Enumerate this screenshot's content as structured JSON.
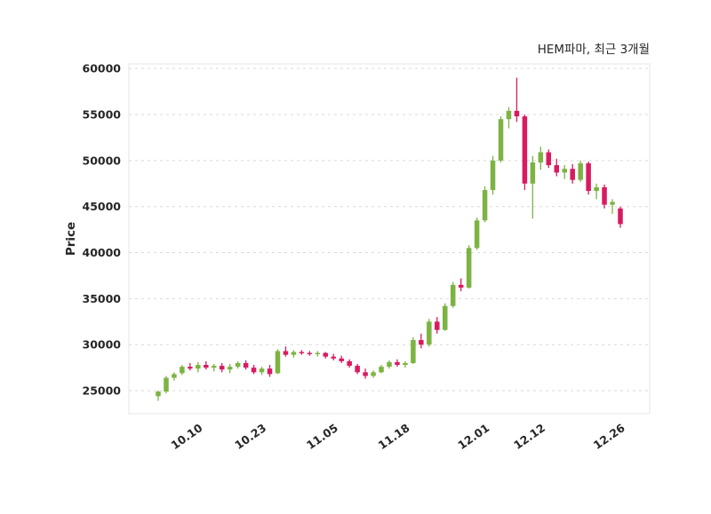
{
  "title": "HEM파마, 최근 3개월",
  "chart_data": {
    "type": "candlestick",
    "title": "HEM파마, 최근 3개월",
    "xlabel": "",
    "ylabel": "Price",
    "ylim": [
      22500,
      60500
    ],
    "yticks": [
      25000,
      30000,
      35000,
      40000,
      45000,
      50000,
      55000,
      60000
    ],
    "xticks": [
      {
        "label": "10.10",
        "index": 5
      },
      {
        "label": "10.23",
        "index": 13
      },
      {
        "label": "11.05",
        "index": 22
      },
      {
        "label": "11.18",
        "index": 31
      },
      {
        "label": "12.01",
        "index": 41
      },
      {
        "label": "12.12",
        "index": 48
      },
      {
        "label": "12.26",
        "index": 58
      }
    ],
    "grid": "horizontal-dashed",
    "legend": "none",
    "colors": {
      "up": "#7CB342",
      "down": "#D81B60",
      "grid": "#d9d9d9",
      "border": "#e6e6e6",
      "text": "#262626",
      "background": "#ffffff"
    },
    "candles_format": [
      "open",
      "high",
      "low",
      "close"
    ],
    "candles": [
      [
        24400,
        25000,
        23900,
        24900
      ],
      [
        24900,
        26600,
        24700,
        26400
      ],
      [
        26400,
        27000,
        26100,
        26800
      ],
      [
        26900,
        27800,
        26700,
        27600
      ],
      [
        27600,
        28000,
        27200,
        27400
      ],
      [
        27400,
        28100,
        27000,
        27800
      ],
      [
        27800,
        28200,
        27300,
        27500
      ],
      [
        27500,
        27900,
        27100,
        27700
      ],
      [
        27700,
        28000,
        27000,
        27300
      ],
      [
        27300,
        27900,
        26900,
        27600
      ],
      [
        27600,
        28200,
        27400,
        28000
      ],
      [
        28000,
        28300,
        27300,
        27500
      ],
      [
        27500,
        27800,
        26800,
        27000
      ],
      [
        27000,
        27600,
        26700,
        27400
      ],
      [
        27400,
        27800,
        26500,
        26800
      ],
      [
        26900,
        29500,
        26800,
        29300
      ],
      [
        29300,
        29800,
        28700,
        28900
      ],
      [
        28900,
        29400,
        28600,
        29200
      ],
      [
        29200,
        29400,
        28900,
        29100
      ],
      [
        29100,
        29300,
        28800,
        29000
      ],
      [
        29000,
        29300,
        28700,
        29100
      ],
      [
        29100,
        29200,
        28500,
        28700
      ],
      [
        28700,
        29000,
        28300,
        28500
      ],
      [
        28500,
        28800,
        28000,
        28200
      ],
      [
        28200,
        28400,
        27500,
        27700
      ],
      [
        27700,
        27900,
        26800,
        27000
      ],
      [
        27000,
        27400,
        26300,
        26600
      ],
      [
        26600,
        27200,
        26400,
        27000
      ],
      [
        27000,
        27800,
        26900,
        27600
      ],
      [
        27600,
        28300,
        27400,
        28100
      ],
      [
        28100,
        28400,
        27600,
        27800
      ],
      [
        27800,
        28200,
        27500,
        28000
      ],
      [
        28000,
        30800,
        27900,
        30500
      ],
      [
        30500,
        31200,
        29600,
        30000
      ],
      [
        30000,
        32800,
        29800,
        32500
      ],
      [
        32500,
        33000,
        31200,
        31600
      ],
      [
        31600,
        34500,
        31500,
        34200
      ],
      [
        34200,
        36800,
        34000,
        36500
      ],
      [
        36500,
        37200,
        35800,
        36200
      ],
      [
        36200,
        40800,
        36100,
        40500
      ],
      [
        40500,
        43800,
        40300,
        43500
      ],
      [
        43500,
        47200,
        43300,
        46800
      ],
      [
        46800,
        50500,
        46300,
        50000
      ],
      [
        50000,
        54800,
        49800,
        54500
      ],
      [
        54500,
        55800,
        53500,
        55400
      ],
      [
        55400,
        59000,
        54200,
        54800
      ],
      [
        54800,
        55000,
        46800,
        47500
      ],
      [
        47500,
        50500,
        43700,
        49800
      ],
      [
        49800,
        51500,
        49000,
        50900
      ],
      [
        50900,
        51200,
        49200,
        49500
      ],
      [
        49500,
        50200,
        48300,
        48700
      ],
      [
        48700,
        49500,
        48000,
        49100
      ],
      [
        49100,
        49600,
        47500,
        47900
      ],
      [
        47900,
        50000,
        47700,
        49700
      ],
      [
        49700,
        49900,
        46300,
        46700
      ],
      [
        46700,
        47500,
        45800,
        47100
      ],
      [
        47100,
        47400,
        44800,
        45200
      ],
      [
        45200,
        45800,
        44200,
        45500
      ],
      [
        44800,
        45000,
        42700,
        43100
      ]
    ]
  }
}
